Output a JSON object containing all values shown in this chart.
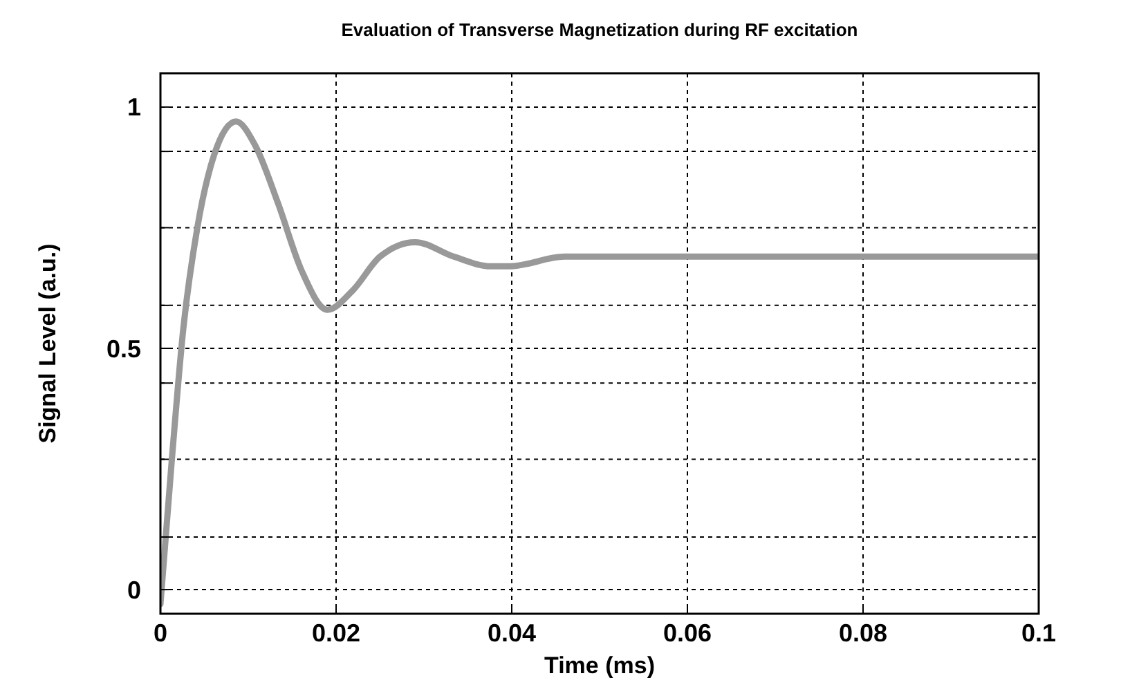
{
  "chart_data": {
    "type": "line",
    "title": "Evaluation of Transverse Magnetization during RF excitation",
    "xlabel": "Time (ms)",
    "ylabel": "Signal Level (a.u.)",
    "x": [
      0,
      0.0013,
      0.0026,
      0.0042,
      0.0061,
      0.0086,
      0.0108,
      0.0134,
      0.0161,
      0.019,
      0.0219,
      0.025,
      0.029,
      0.0334,
      0.0376,
      0.0398,
      0.046,
      0.055,
      0.065,
      0.08,
      0.1
    ],
    "series": [
      {
        "color": "#999999",
        "values": [
          -0.03,
          0.27,
          0.54,
          0.75,
          0.9,
          0.97,
          0.92,
          0.8,
          0.66,
          0.58,
          0.62,
          0.69,
          0.72,
          0.69,
          0.67,
          0.67,
          0.69,
          0.69,
          0.69,
          0.69,
          0.69
        ]
      }
    ],
    "xlim": [
      0,
      0.1
    ],
    "xticks": [
      0,
      0.02,
      0.04,
      0.06,
      0.08,
      0.1
    ],
    "ylim": [
      -0.05,
      1.07
    ],
    "yticks": [
      0,
      {
        "value": 0.109,
        "label": null
      },
      {
        "value": 0.27,
        "label": null
      },
      {
        "value": 0.428,
        "label": null
      },
      0.5,
      {
        "value": 0.589,
        "label": null
      },
      {
        "value": 0.75,
        "label": null
      },
      {
        "value": 0.908,
        "label": null
      },
      1
    ],
    "grid": true,
    "line_style": "solid",
    "marker": "none"
  }
}
